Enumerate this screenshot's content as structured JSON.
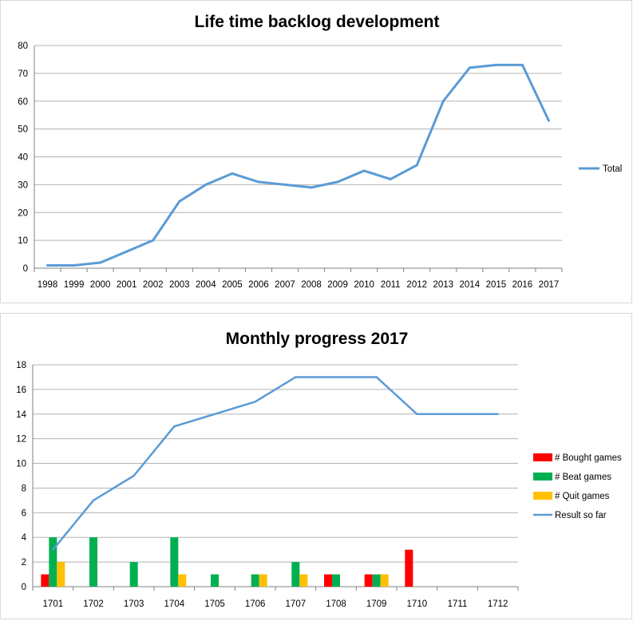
{
  "chart_data": [
    {
      "type": "line",
      "title": "Life time backlog development",
      "x": [
        "1998",
        "1999",
        "2000",
        "2001",
        "2002",
        "2003",
        "2004",
        "2005",
        "2006",
        "2007",
        "2008",
        "2009",
        "2010",
        "2011",
        "2012",
        "2013",
        "2014",
        "2015",
        "2016",
        "2017"
      ],
      "series": [
        {
          "name": "Total",
          "values": [
            1,
            1,
            2,
            6,
            10,
            24,
            30,
            34,
            31,
            30,
            29,
            31,
            35,
            32,
            37,
            60,
            72,
            73,
            73,
            53
          ],
          "color": "#5b9bd5"
        }
      ],
      "ylim": [
        0,
        80
      ],
      "yticks": [
        0,
        10,
        20,
        30,
        40,
        50,
        60,
        70,
        80
      ],
      "grid": true,
      "legend": "right"
    },
    {
      "type": "bar",
      "title": "Monthly progress 2017",
      "categories": [
        "1701",
        "1702",
        "1703",
        "1704",
        "1705",
        "1706",
        "1707",
        "1708",
        "1709",
        "1710",
        "1711",
        "1712"
      ],
      "series": [
        {
          "name": "# Bought games",
          "type": "bar",
          "values": [
            1,
            0,
            0,
            0,
            0,
            0,
            0,
            1,
            1,
            3,
            0,
            0
          ],
          "color": "#ff0000"
        },
        {
          "name": "# Beat games",
          "type": "bar",
          "values": [
            4,
            4,
            2,
            4,
            1,
            1,
            2,
            1,
            1,
            0,
            0,
            0
          ],
          "color": "#00b050"
        },
        {
          "name": "# Quit games",
          "type": "bar",
          "values": [
            2,
            0,
            0,
            1,
            0,
            1,
            1,
            0,
            1,
            0,
            0,
            0
          ],
          "color": "#ffc000"
        },
        {
          "name": "Result so far",
          "type": "line",
          "values": [
            3,
            7,
            9,
            13,
            14,
            15,
            17,
            17,
            17,
            14,
            14,
            14
          ],
          "color": "#5b9bd5"
        }
      ],
      "ylim": [
        0,
        18
      ],
      "yticks": [
        0,
        2,
        4,
        6,
        8,
        10,
        12,
        14,
        16,
        18
      ],
      "grid": true,
      "legend": "right"
    }
  ]
}
